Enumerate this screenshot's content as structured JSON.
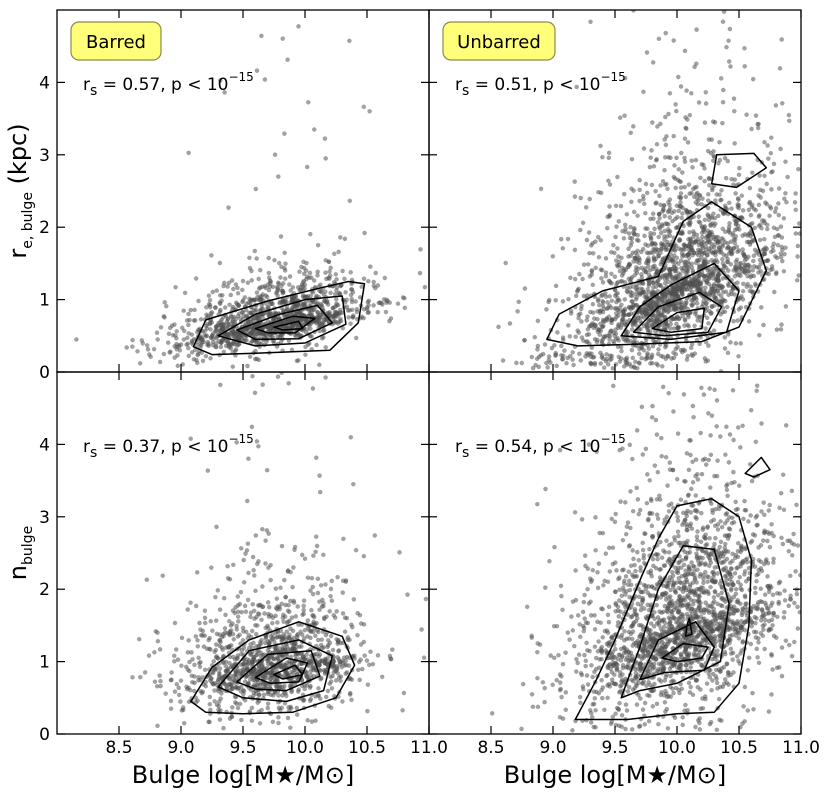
{
  "chart_data": {
    "type": "scatter",
    "layout": "2x2 grid, shared x-axis per column, shared y-axis per row",
    "x_label": "Bulge log[M★/M⊙]",
    "x_ticks": [
      "8.5",
      "9.0",
      "9.5",
      "10.0",
      "10.5",
      "11.0"
    ],
    "xlim": [
      8.0,
      11.0
    ],
    "panels": [
      {
        "id": "top-left",
        "legend": "Barred",
        "ylabel": "re, bulge (kpc)",
        "ylabel_main": "r",
        "ylabel_sub": "e, bulge",
        "ylabel_unit": "(kpc)",
        "ylim": [
          0,
          5
        ],
        "y_ticks": [
          "0",
          "1",
          "2",
          "3",
          "4"
        ],
        "annotation": {
          "prefix": "r",
          "sub": "s",
          "text": " = 0.57,  p < 10",
          "sup": "−15"
        },
        "n_points": 1300,
        "distribution": {
          "x_mean": 9.75,
          "x_sd": 0.38,
          "y_mean": 0.68,
          "y_sd": 0.3,
          "slope": 0.55
        },
        "contours": [
          [
            [
              9.1,
              0.35
            ],
            [
              9.2,
              0.72
            ],
            [
              9.7,
              0.98
            ],
            [
              10.1,
              1.15
            ],
            [
              10.35,
              1.25
            ],
            [
              10.48,
              1.22
            ],
            [
              10.43,
              0.68
            ],
            [
              10.2,
              0.3
            ],
            [
              9.6,
              0.26
            ],
            [
              9.25,
              0.24
            ]
          ],
          [
            [
              9.3,
              0.5
            ],
            [
              9.6,
              0.8
            ],
            [
              10.0,
              1.0
            ],
            [
              10.3,
              1.05
            ],
            [
              10.33,
              0.66
            ],
            [
              10.0,
              0.4
            ],
            [
              9.6,
              0.36
            ]
          ],
          [
            [
              9.45,
              0.58
            ],
            [
              9.8,
              0.8
            ],
            [
              10.1,
              0.92
            ],
            [
              10.22,
              0.68
            ],
            [
              9.95,
              0.46
            ],
            [
              9.6,
              0.45
            ]
          ],
          [
            [
              9.6,
              0.6
            ],
            [
              9.9,
              0.77
            ],
            [
              10.08,
              0.74
            ],
            [
              9.92,
              0.54
            ],
            [
              9.7,
              0.54
            ]
          ],
          [
            [
              9.75,
              0.62
            ],
            [
              9.95,
              0.7
            ],
            [
              9.98,
              0.6
            ],
            [
              9.82,
              0.58
            ]
          ]
        ]
      },
      {
        "id": "top-right",
        "legend": "Unbarred",
        "ylim": [
          0,
          5
        ],
        "annotation": {
          "prefix": "r",
          "sub": "s",
          "text": " = 0.51,  p < 10",
          "sup": "−15"
        },
        "n_points": 2200,
        "distribution": {
          "x_mean": 10.0,
          "x_sd": 0.42,
          "y_mean": 1.2,
          "y_sd": 0.85,
          "slope": 1.3
        },
        "contours": [
          [
            [
              8.95,
              0.45
            ],
            [
              9.05,
              0.8
            ],
            [
              9.4,
              1.12
            ],
            [
              9.85,
              1.32
            ],
            [
              10.05,
              2.08
            ],
            [
              10.28,
              2.35
            ],
            [
              10.6,
              2.0
            ],
            [
              10.72,
              1.4
            ],
            [
              10.5,
              0.62
            ],
            [
              10.2,
              0.42
            ],
            [
              9.6,
              0.38
            ],
            [
              9.2,
              0.36
            ]
          ],
          [
            [
              9.55,
              0.5
            ],
            [
              9.7,
              0.9
            ],
            [
              9.95,
              1.2
            ],
            [
              10.3,
              1.5
            ],
            [
              10.5,
              1.12
            ],
            [
              10.4,
              0.55
            ],
            [
              9.95,
              0.45
            ]
          ],
          [
            [
              9.65,
              0.55
            ],
            [
              9.85,
              0.9
            ],
            [
              10.18,
              1.1
            ],
            [
              10.36,
              0.9
            ],
            [
              10.25,
              0.55
            ],
            [
              9.9,
              0.5
            ]
          ],
          [
            [
              9.8,
              0.6
            ],
            [
              10.0,
              0.82
            ],
            [
              10.22,
              0.88
            ],
            [
              10.2,
              0.6
            ],
            [
              9.95,
              0.55
            ]
          ],
          [
            [
              10.28,
              2.6
            ],
            [
              10.32,
              3.0
            ],
            [
              10.62,
              3.02
            ],
            [
              10.72,
              2.82
            ],
            [
              10.48,
              2.55
            ]
          ]
        ]
      },
      {
        "id": "bottom-left",
        "ylabel": "nbulge",
        "ylabel_main": "n",
        "ylabel_sub": "bulge",
        "ylim": [
          0,
          5
        ],
        "y_ticks": [
          "0",
          "1",
          "2",
          "3",
          "4"
        ],
        "annotation": {
          "prefix": "r",
          "sub": "s",
          "text": " = 0.37,  p < 10",
          "sup": "−15"
        },
        "n_points": 1300,
        "distribution": {
          "x_mean": 9.75,
          "x_sd": 0.38,
          "y_mean": 0.95,
          "y_sd": 0.55,
          "slope": 0.35
        },
        "contours": [
          [
            [
              9.08,
              0.45
            ],
            [
              9.25,
              0.92
            ],
            [
              9.55,
              1.3
            ],
            [
              9.95,
              1.55
            ],
            [
              10.3,
              1.35
            ],
            [
              10.4,
              0.95
            ],
            [
              10.25,
              0.5
            ],
            [
              9.9,
              0.3
            ],
            [
              9.5,
              0.28
            ],
            [
              9.2,
              0.3
            ]
          ],
          [
            [
              9.3,
              0.65
            ],
            [
              9.55,
              1.15
            ],
            [
              9.95,
              1.3
            ],
            [
              10.22,
              1.08
            ],
            [
              10.15,
              0.6
            ],
            [
              9.85,
              0.45
            ],
            [
              9.5,
              0.5
            ]
          ],
          [
            [
              9.45,
              0.72
            ],
            [
              9.7,
              1.1
            ],
            [
              10.05,
              1.15
            ],
            [
              10.12,
              0.8
            ],
            [
              9.85,
              0.6
            ],
            [
              9.6,
              0.62
            ]
          ],
          [
            [
              9.6,
              0.78
            ],
            [
              9.85,
              1.05
            ],
            [
              10.02,
              0.98
            ],
            [
              9.95,
              0.72
            ],
            [
              9.72,
              0.7
            ]
          ],
          [
            [
              9.75,
              0.82
            ],
            [
              9.92,
              0.95
            ],
            [
              9.98,
              0.82
            ],
            [
              9.82,
              0.76
            ]
          ]
        ]
      },
      {
        "id": "bottom-right",
        "ylim": [
          0,
          5
        ],
        "annotation": {
          "prefix": "r",
          "sub": "s",
          "text": " = 0.54,  p < 10",
          "sup": "−15"
        },
        "n_points": 2200,
        "distribution": {
          "x_mean": 10.05,
          "x_sd": 0.42,
          "y_mean": 1.5,
          "y_sd": 1.0,
          "slope": 1.0
        },
        "contours": [
          [
            [
              9.18,
              0.2
            ],
            [
              9.35,
              0.75
            ],
            [
              9.5,
              1.3
            ],
            [
              9.72,
              2.2
            ],
            [
              9.85,
              2.7
            ],
            [
              10.0,
              3.15
            ],
            [
              10.28,
              3.25
            ],
            [
              10.5,
              3.0
            ],
            [
              10.6,
              2.4
            ],
            [
              10.58,
              1.5
            ],
            [
              10.5,
              0.7
            ],
            [
              10.3,
              0.3
            ],
            [
              10.0,
              0.28
            ],
            [
              9.6,
              0.2
            ]
          ],
          [
            [
              9.55,
              0.5
            ],
            [
              9.7,
              1.2
            ],
            [
              9.85,
              2.0
            ],
            [
              10.05,
              2.6
            ],
            [
              10.3,
              2.55
            ],
            [
              10.42,
              1.8
            ],
            [
              10.35,
              1.0
            ],
            [
              10.0,
              0.7
            ],
            [
              9.7,
              0.6
            ]
          ],
          [
            [
              9.7,
              0.75
            ],
            [
              9.85,
              1.3
            ],
            [
              10.15,
              1.55
            ],
            [
              10.3,
              1.2
            ],
            [
              10.22,
              0.88
            ],
            [
              9.9,
              0.85
            ]
          ],
          [
            [
              9.88,
              1.05
            ],
            [
              10.05,
              1.25
            ],
            [
              10.25,
              1.2
            ],
            [
              10.2,
              1.05
            ],
            [
              10.0,
              1.0
            ]
          ],
          [
            [
              10.07,
              1.35
            ],
            [
              10.12,
              1.38
            ],
            [
              10.1,
              1.6
            ],
            [
              10.08,
              1.5
            ]
          ],
          [
            [
              10.55,
              3.6
            ],
            [
              10.68,
              3.82
            ],
            [
              10.75,
              3.65
            ],
            [
              10.62,
              3.55
            ]
          ]
        ]
      }
    ]
  }
}
